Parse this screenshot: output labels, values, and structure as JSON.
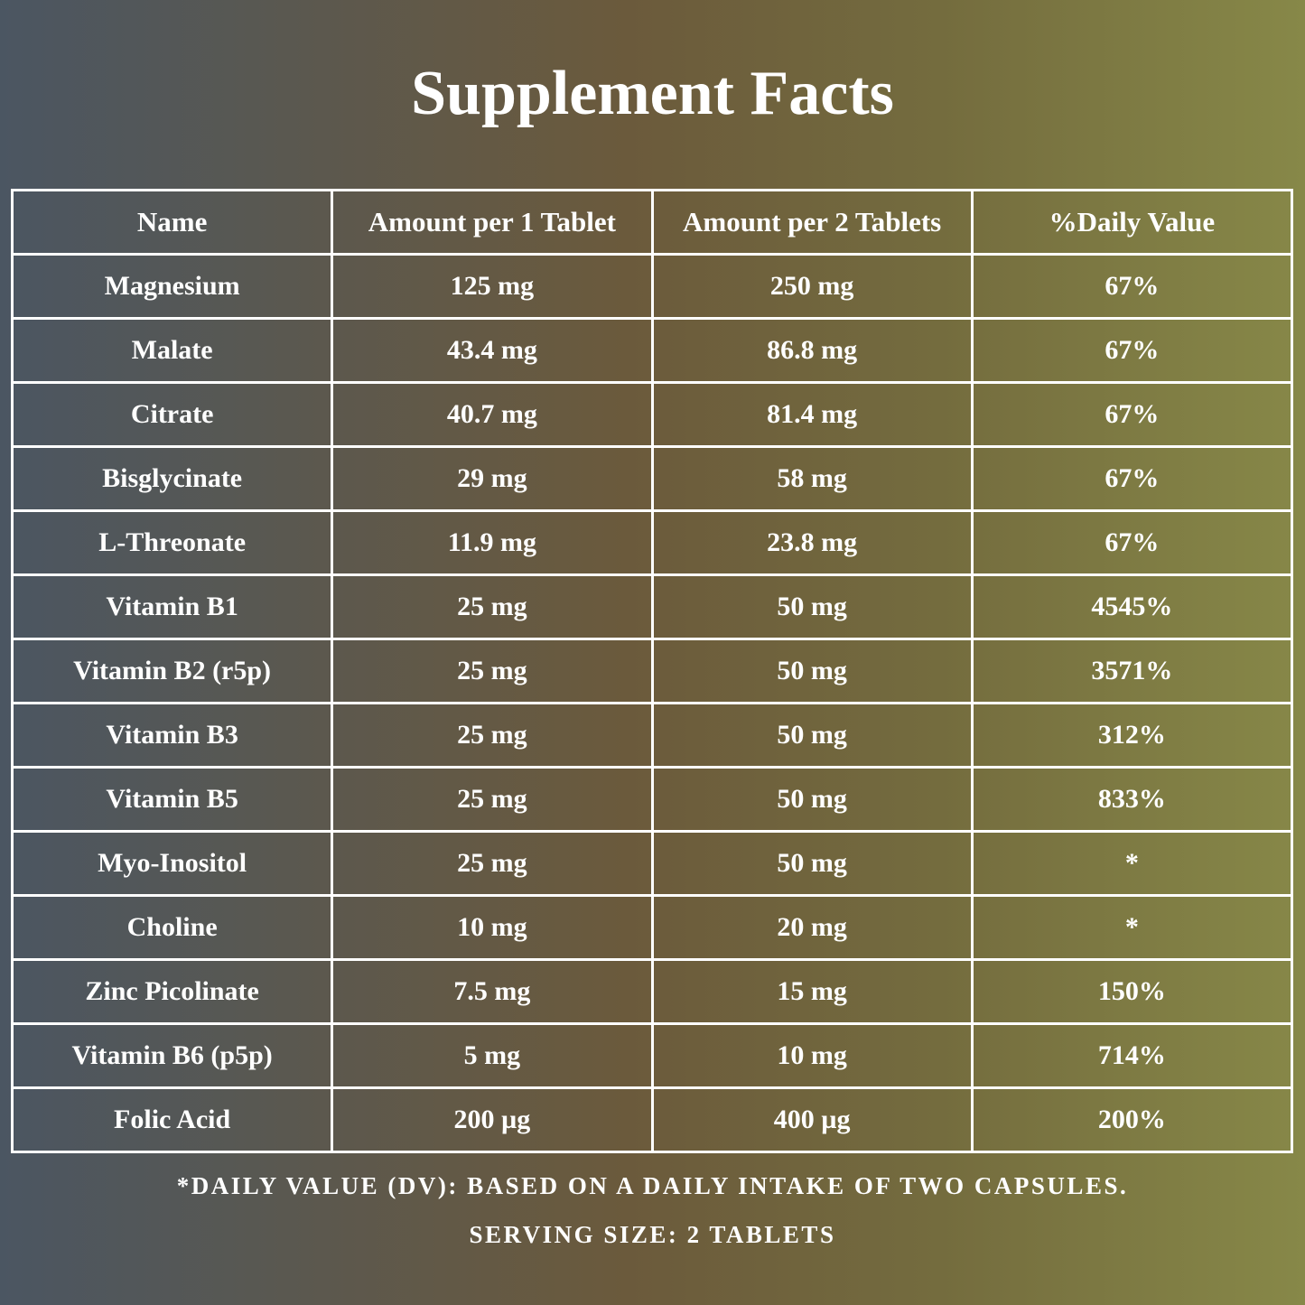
{
  "title": "Supplement Facts",
  "headers": [
    "Name",
    "Amount per 1 Tablet",
    "Amount per 2 Tablets",
    "%Daily Value"
  ],
  "rows": [
    [
      "Magnesium",
      "125 mg",
      "250 mg",
      "67%"
    ],
    [
      "Malate",
      "43.4 mg",
      "86.8 mg",
      "67%"
    ],
    [
      "Citrate",
      "40.7 mg",
      "81.4 mg",
      "67%"
    ],
    [
      "Bisglycinate",
      "29 mg",
      "58 mg",
      "67%"
    ],
    [
      "L-Threonate",
      "11.9 mg",
      "23.8 mg",
      "67%"
    ],
    [
      "Vitamin B1",
      "25 mg",
      "50 mg",
      "4545%"
    ],
    [
      "Vitamin B2 (r5p)",
      "25 mg",
      "50 mg",
      "3571%"
    ],
    [
      "Vitamin B3",
      "25 mg",
      "50 mg",
      "312%"
    ],
    [
      "Vitamin B5",
      "25 mg",
      "50 mg",
      "833%"
    ],
    [
      "Myo-Inositol",
      "25 mg",
      "50 mg",
      "*"
    ],
    [
      "Choline",
      "10 mg",
      "20 mg",
      "*"
    ],
    [
      "Zinc Picolinate",
      "7.5 mg",
      "15 mg",
      "150%"
    ],
    [
      "Vitamin B6 (p5p)",
      "5 mg",
      "10 mg",
      "714%"
    ],
    [
      "Folic Acid",
      "200 µg",
      "400 µg",
      "200%"
    ]
  ],
  "footnotes": {
    "dv_note": "*DAILY VALUE (DV): BASED ON A DAILY INTAKE OF TWO CAPSULES.",
    "serving_size": "SERVING SIZE: 2 TABLETS"
  },
  "colors": {
    "background_left": "#4b5662",
    "background_middle": "#6b5a3c",
    "background_right": "#878848",
    "text": "#ffffff",
    "grid_lines": "#ffffff"
  }
}
